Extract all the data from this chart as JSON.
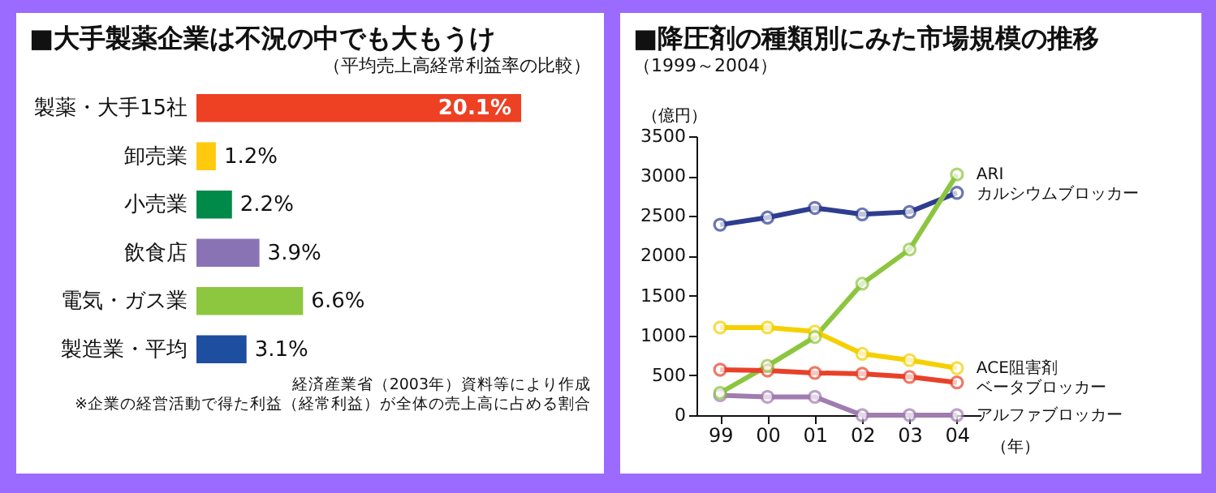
{
  "chart_data": [
    {
      "type": "bar",
      "orientation": "horizontal",
      "title": "■大手製薬企業は不況の中でも大もうけ",
      "subtitle": "（平均売上高経常利益率の比較）",
      "categories": [
        "製薬・大手15社",
        "卸売業",
        "小売業",
        "飲食店",
        "電気・ガス業",
        "製造業・平均"
      ],
      "values": [
        20.1,
        1.2,
        2.2,
        3.9,
        6.6,
        3.1
      ],
      "colors": [
        "#ee4023",
        "#ffc90e",
        "#008a4a",
        "#8a73b5",
        "#8dc63f",
        "#1d4e9f"
      ],
      "value_labels": [
        "20.1%",
        "1.2%",
        "2.2%",
        "3.9%",
        "6.6%",
        "3.1%"
      ],
      "annotations": [
        "経済産業省（2003年）資料等により作成",
        "※企業の経営活動で得た利益（経常利益）が全体の売上高に占める割合"
      ],
      "legend": false
    },
    {
      "type": "line",
      "title": "■降圧剤の種類別にみた市場規模の推移",
      "subtitle": "（1999～2004）",
      "xlabel": "（年）",
      "ylabel": "（億円）",
      "categories": [
        "99",
        "00",
        "01",
        "02",
        "03",
        "04"
      ],
      "series": [
        {
          "name": "カルシウムブロッカー",
          "color": "#2e3d8f",
          "values": [
            2390,
            2480,
            2600,
            2520,
            2550,
            2790
          ]
        },
        {
          "name": "ARI",
          "color": "#8cc63f",
          "values": [
            280,
            620,
            980,
            1650,
            2080,
            3020
          ]
        },
        {
          "name": "ACE阻害剤",
          "color": "#f5d000",
          "values": [
            1100,
            1100,
            1050,
            770,
            690,
            590
          ]
        },
        {
          "name": "ベータブロッカー",
          "color": "#e8412a",
          "values": [
            570,
            560,
            530,
            520,
            480,
            410
          ]
        },
        {
          "name": "アルファブロッカー",
          "color": "#a07cb0",
          "values": [
            250,
            230,
            230,
            0,
            0,
            0
          ]
        }
      ],
      "ylim": [
        0,
        3500
      ],
      "yticks": [
        0,
        500,
        1000,
        1500,
        2000,
        2500,
        3000,
        3500
      ],
      "marker": "circle",
      "line_style": "solid",
      "grid": false,
      "legend": false
    }
  ]
}
